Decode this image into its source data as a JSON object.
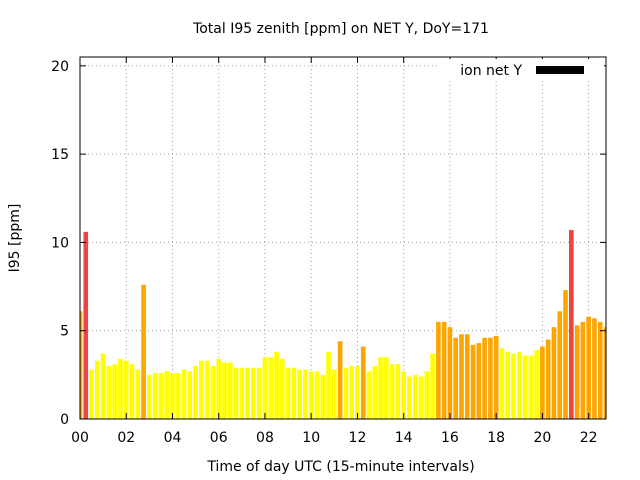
{
  "chart_data": {
    "type": "bar",
    "title": "Total I95 zenith [ppm] on NET Y, DoY=171",
    "xlabel": "Time of day UTC (15-minute intervals)",
    "ylabel": "I95 [ppm]",
    "xlim": [
      0,
      22.75
    ],
    "ylim": [
      0,
      20.5
    ],
    "yticks": [
      0,
      5,
      10,
      15,
      20
    ],
    "xticks": [
      {
        "value": 0,
        "label": "00"
      },
      {
        "value": 2,
        "label": "02"
      },
      {
        "value": 4,
        "label": "04"
      },
      {
        "value": 6,
        "label": "06"
      },
      {
        "value": 8,
        "label": "08"
      },
      {
        "value": 10,
        "label": "10"
      },
      {
        "value": 12,
        "label": "12"
      },
      {
        "value": 14,
        "label": "14"
      },
      {
        "value": 16,
        "label": "16"
      },
      {
        "value": 18,
        "label": "18"
      },
      {
        "value": 20,
        "label": "20"
      },
      {
        "value": 22,
        "label": "22"
      }
    ],
    "grid": true,
    "legend": {
      "label": "ion net Y",
      "position": "top-right",
      "color": "#000000"
    },
    "bar_width_hours": 0.2,
    "colors": {
      "low": "#ffff00",
      "medium": "#ffa500",
      "high": "#ee4444"
    },
    "x": [
      0.0,
      0.25,
      0.5,
      0.75,
      1.0,
      1.25,
      1.5,
      1.75,
      2.0,
      2.25,
      2.5,
      2.75,
      3.0,
      3.25,
      3.5,
      3.75,
      4.0,
      4.25,
      4.5,
      4.75,
      5.0,
      5.25,
      5.5,
      5.75,
      6.0,
      6.25,
      6.5,
      6.75,
      7.0,
      7.25,
      7.5,
      7.75,
      8.0,
      8.25,
      8.5,
      8.75,
      9.0,
      9.25,
      9.5,
      9.75,
      10.0,
      10.25,
      10.5,
      10.75,
      11.0,
      11.25,
      11.5,
      11.75,
      12.0,
      12.25,
      12.5,
      12.75,
      13.0,
      13.25,
      13.5,
      13.75,
      14.0,
      14.25,
      14.5,
      14.75,
      15.0,
      15.25,
      15.5,
      15.75,
      16.0,
      16.25,
      16.5,
      16.75,
      17.0,
      17.25,
      17.5,
      17.75,
      18.0,
      18.25,
      18.5,
      18.75,
      19.0,
      19.25,
      19.5,
      19.75,
      20.0,
      20.25,
      20.5,
      20.75,
      21.0,
      21.25,
      21.5,
      21.75,
      22.0,
      22.25,
      22.5,
      22.75
    ],
    "values": [
      6.1,
      10.6,
      2.8,
      3.3,
      3.7,
      3.0,
      3.1,
      3.4,
      3.3,
      3.1,
      2.8,
      7.6,
      2.5,
      2.6,
      2.6,
      2.7,
      2.6,
      2.6,
      2.8,
      2.7,
      3.0,
      3.3,
      3.3,
      3.0,
      3.4,
      3.2,
      3.2,
      2.9,
      2.9,
      2.9,
      2.9,
      2.9,
      3.5,
      3.5,
      3.8,
      3.4,
      2.9,
      2.9,
      2.8,
      2.8,
      2.7,
      2.7,
      2.5,
      3.8,
      2.8,
      4.4,
      2.9,
      3.0,
      3.0,
      4.1,
      2.7,
      3.0,
      3.5,
      3.5,
      3.1,
      3.1,
      2.7,
      2.4,
      2.5,
      2.4,
      2.7,
      3.7,
      5.5,
      5.5,
      5.2,
      4.6,
      4.8,
      4.8,
      4.2,
      4.3,
      4.6,
      4.6,
      4.7,
      4.0,
      3.8,
      3.7,
      3.8,
      3.6,
      3.6,
      3.9,
      4.1,
      4.5,
      5.2,
      6.1,
      7.3,
      10.7,
      5.3,
      5.5,
      5.8,
      5.7,
      5.5,
      5.2
    ],
    "levels": [
      "medium",
      "high",
      "low",
      "low",
      "low",
      "low",
      "low",
      "low",
      "low",
      "low",
      "low",
      "medium",
      "low",
      "low",
      "low",
      "low",
      "low",
      "low",
      "low",
      "low",
      "low",
      "low",
      "low",
      "low",
      "low",
      "low",
      "low",
      "low",
      "low",
      "low",
      "low",
      "low",
      "low",
      "low",
      "low",
      "low",
      "low",
      "low",
      "low",
      "low",
      "low",
      "low",
      "low",
      "low",
      "low",
      "medium",
      "low",
      "low",
      "low",
      "medium",
      "low",
      "low",
      "low",
      "low",
      "low",
      "low",
      "low",
      "low",
      "low",
      "low",
      "low",
      "low",
      "medium",
      "medium",
      "medium",
      "medium",
      "medium",
      "medium",
      "medium",
      "medium",
      "medium",
      "medium",
      "medium",
      "low",
      "low",
      "low",
      "low",
      "low",
      "low",
      "low",
      "medium",
      "medium",
      "medium",
      "medium",
      "medium",
      "high",
      "medium",
      "medium",
      "medium",
      "medium",
      "medium",
      "medium"
    ]
  }
}
